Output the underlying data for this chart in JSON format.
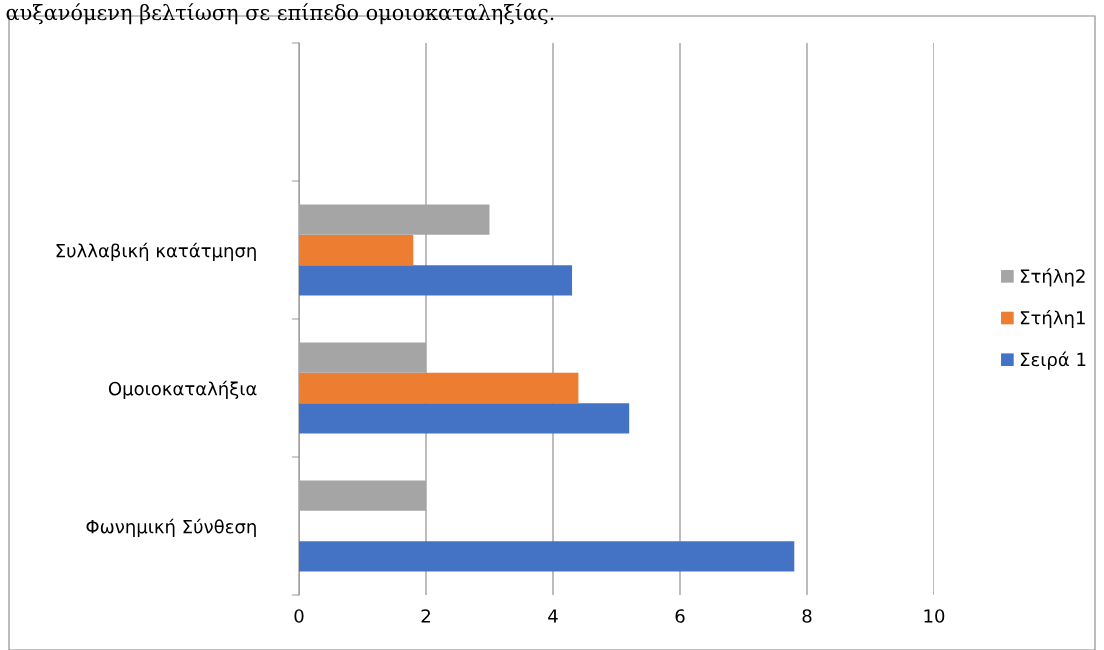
{
  "chart_data": {
    "type": "bar",
    "orientation": "horizontal",
    "categories": [
      null,
      "Συλλαβική κατάτμηση",
      "Ομοιοκαταλήξια",
      "Φωνημική Σύνθεση"
    ],
    "series": [
      {
        "name": "Σειρά 1",
        "color": "#4472c4",
        "values": [
          null,
          4.3,
          5.2,
          7.8
        ]
      },
      {
        "name": "Στήλη1",
        "color": "#ed7d31",
        "values": [
          null,
          1.8,
          4.4,
          null
        ]
      },
      {
        "name": "Στήλη2",
        "color": "#a5a5a5",
        "values": [
          null,
          3.0,
          2.0,
          2.0
        ]
      }
    ],
    "xlim": [
      0,
      10
    ],
    "xticks": [
      0,
      2,
      4,
      6,
      8,
      10
    ],
    "grid": "x",
    "legend": "right",
    "annotations": [
      "αυξανόμενη βελτίωση σε επίπεδο ομοιοκαταληξίας."
    ]
  }
}
